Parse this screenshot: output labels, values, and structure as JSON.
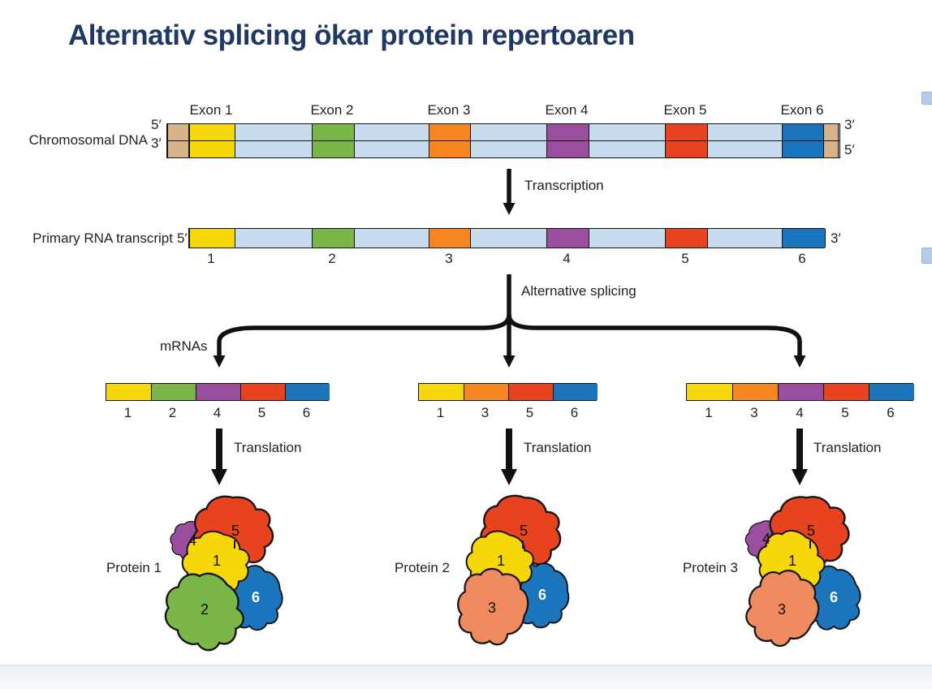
{
  "slide": {
    "title": "Alternativ splicing ökar protein repertoaren",
    "title_color": "#1f3864"
  },
  "colors": {
    "1": "#f6d70a",
    "2": "#7ab648",
    "3": "#f6861f",
    "4": "#9a4e9e",
    "5": "#e8431f",
    "6": "#1b75bc",
    "intron": "#c8dcf0",
    "cap": "#d8b289",
    "salmon": "#f08a5f"
  },
  "dna": {
    "label": "Chromosomal DNA",
    "left_top": "5′",
    "left_bottom": "3′",
    "right_top": "3′",
    "right_bottom": "5′",
    "exon_labels": [
      "Exon 1",
      "Exon 2",
      "Exon 3",
      "Exon 4",
      "Exon 5",
      "Exon 6"
    ]
  },
  "transcription": {
    "label": "Transcription"
  },
  "primary_transcript": {
    "label": "Primary RNA transcript",
    "left": "5′",
    "right": "3′",
    "numbers": [
      "1",
      "2",
      "3",
      "4",
      "5",
      "6"
    ]
  },
  "splicing": {
    "label": "Alternative splicing",
    "mrnas_label": "mRNAs"
  },
  "mrnas": [
    {
      "exons": [
        "1",
        "2",
        "4",
        "5",
        "6"
      ]
    },
    {
      "exons": [
        "1",
        "3",
        "5",
        "6"
      ]
    },
    {
      "exons": [
        "1",
        "3",
        "4",
        "5",
        "6"
      ]
    }
  ],
  "translation_label": "Translation",
  "proteins": [
    {
      "label": "Protein 1",
      "subunits": [
        "4",
        "5",
        "1",
        "2",
        "6"
      ]
    },
    {
      "label": "Protein 2",
      "subunits": [
        "5",
        "1",
        "3",
        "6"
      ]
    },
    {
      "label": "Protein 3",
      "subunits": [
        "4",
        "5",
        "1",
        "3",
        "6"
      ]
    }
  ]
}
